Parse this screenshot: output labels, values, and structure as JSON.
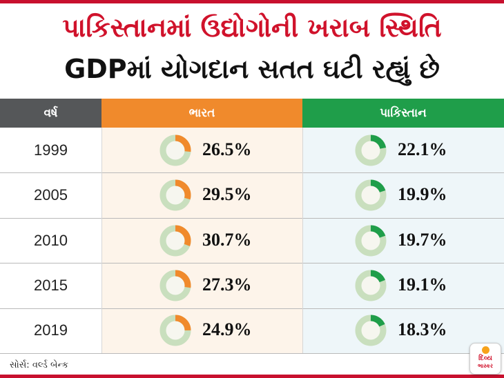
{
  "title_line1": "પાકિસ્તાનમાં ઉદ્યોગોની ખરાબ સ્થિતિ",
  "title_line2": "GDPમાં યોગદાન સતત ઘટી રહ્યું છે",
  "source": "સોર્સ: વર્લ્ડ બેન્ક",
  "logo": {
    "line1": "દિવ્ય",
    "line2": "ભાસ્કર"
  },
  "colors": {
    "india": "#f08a2c",
    "pakistan": "#1f9e4a",
    "ring_base": "#c9dfbe",
    "title_red": "#d0122b"
  },
  "chart_data": {
    "type": "table",
    "columns": [
      "વર્ષ",
      "ભારત",
      "પાકિસ્તાન"
    ],
    "rows": [
      {
        "year": "1999",
        "india": 26.5,
        "pakistan": 22.1,
        "india_label": "26.5%",
        "pakistan_label": "22.1%"
      },
      {
        "year": "2005",
        "india": 29.5,
        "pakistan": 19.9,
        "india_label": "29.5%",
        "pakistan_label": "19.9%"
      },
      {
        "year": "2010",
        "india": 30.7,
        "pakistan": 19.7,
        "india_label": "30.7%",
        "pakistan_label": "19.7%"
      },
      {
        "year": "2015",
        "india": 27.3,
        "pakistan": 19.1,
        "india_label": "27.3%",
        "pakistan_label": "19.1%"
      },
      {
        "year": "2019",
        "india": 24.9,
        "pakistan": 18.3,
        "india_label": "24.9%",
        "pakistan_label": "18.3%"
      }
    ]
  }
}
